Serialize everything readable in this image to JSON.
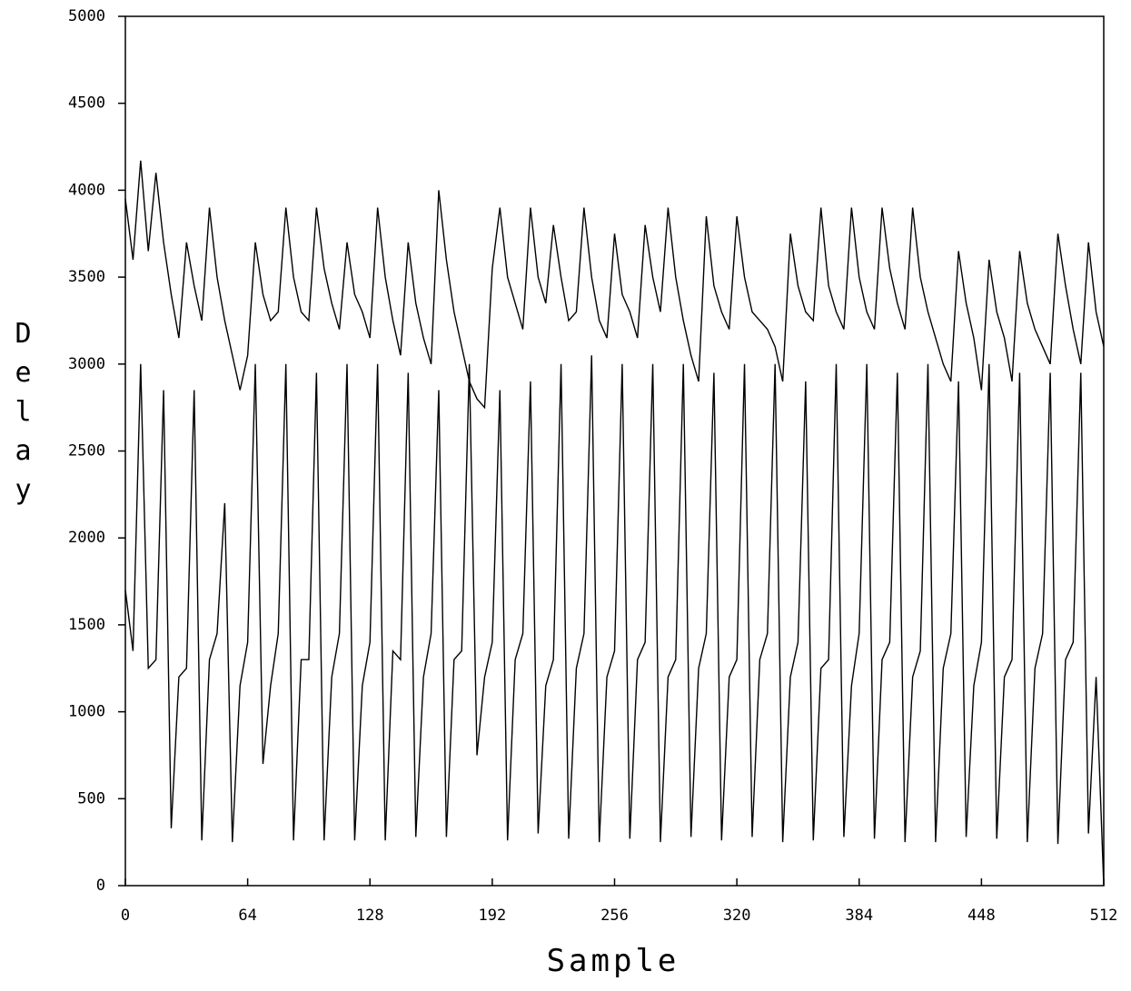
{
  "chart_data": {
    "type": "line",
    "x_label": "Sample",
    "y_label": "Delay",
    "x": [
      0,
      4,
      8,
      12,
      16,
      20,
      24,
      28,
      32,
      36,
      40,
      44,
      48,
      52,
      56,
      60,
      64,
      68,
      72,
      76,
      80,
      84,
      88,
      92,
      96,
      100,
      104,
      108,
      112,
      116,
      120,
      124,
      128,
      132,
      136,
      140,
      144,
      148,
      152,
      156,
      160,
      164,
      168,
      172,
      176,
      180,
      184,
      188,
      192,
      196,
      200,
      204,
      208,
      212,
      216,
      220,
      224,
      228,
      232,
      236,
      240,
      244,
      248,
      252,
      256,
      260,
      264,
      268,
      272,
      276,
      280,
      284,
      288,
      292,
      296,
      300,
      304,
      308,
      312,
      316,
      320,
      324,
      328,
      332,
      336,
      340,
      344,
      348,
      352,
      356,
      360,
      364,
      368,
      372,
      376,
      380,
      384,
      388,
      392,
      396,
      400,
      404,
      408,
      412,
      416,
      420,
      424,
      428,
      432,
      436,
      440,
      444,
      448,
      452,
      456,
      460,
      464,
      468,
      472,
      476,
      480,
      484,
      488,
      492,
      496,
      500,
      504,
      508,
      512
    ],
    "series": [
      {
        "color": "#000000",
        "values": [
          3950,
          3600,
          4170,
          3650,
          4100,
          3700,
          3400,
          3150,
          3700,
          3450,
          3250,
          3900,
          3500,
          3250,
          3050,
          2850,
          3050,
          3700,
          3400,
          3250,
          3300,
          3900,
          3500,
          3300,
          3250,
          3900,
          3550,
          3350,
          3200,
          3700,
          3400,
          3300,
          3150,
          3900,
          3500,
          3250,
          3050,
          3700,
          3350,
          3150,
          3000,
          4000,
          3600,
          3300,
          3100,
          2900,
          2800,
          2750,
          3550,
          3900,
          3500,
          3350,
          3200,
          3900,
          3500,
          3350,
          3800,
          3500,
          3250,
          3300,
          3900,
          3500,
          3250,
          3150,
          3750,
          3400,
          3300,
          3150,
          3800,
          3500,
          3300,
          3900,
          3500,
          3250,
          3050,
          2900,
          3850,
          3450,
          3300,
          3200,
          3850,
          3500,
          3300,
          3250,
          3200,
          3100,
          2900,
          3750,
          3450,
          3300,
          3250,
          3900,
          3450,
          3300,
          3200,
          3900,
          3500,
          3300,
          3200,
          3900,
          3550,
          3350,
          3200,
          3900,
          3500,
          3300,
          3150,
          3000,
          2900,
          3650,
          3350,
          3150,
          2850,
          3600,
          3300,
          3150,
          2900,
          3650,
          3350,
          3200,
          3100,
          3000,
          3750,
          3450,
          3200,
          3000,
          3700,
          3300,
          3100
        ]
      },
      {
        "color": "#000000",
        "values": [
          1700,
          1350,
          3000,
          1250,
          1300,
          2850,
          330,
          1200,
          1250,
          2850,
          260,
          1300,
          1450,
          2200,
          250,
          1150,
          1400,
          3000,
          700,
          1150,
          1450,
          3000,
          260,
          1300,
          1300,
          2950,
          260,
          1200,
          1450,
          3000,
          260,
          1150,
          1400,
          3000,
          260,
          1350,
          1300,
          2950,
          280,
          1200,
          1450,
          2850,
          280,
          1300,
          1350,
          3000,
          750,
          1200,
          1400,
          2850,
          260,
          1300,
          1450,
          2900,
          300,
          1150,
          1300,
          3000,
          270,
          1250,
          1450,
          3050,
          250,
          1200,
          1350,
          3000,
          270,
          1300,
          1400,
          3000,
          250,
          1200,
          1300,
          3000,
          280,
          1250,
          1450,
          2950,
          260,
          1200,
          1300,
          3000,
          280,
          1300,
          1450,
          3000,
          250,
          1200,
          1400,
          2900,
          260,
          1250,
          1300,
          3000,
          280,
          1150,
          1450,
          3000,
          270,
          1300,
          1400,
          2950,
          250,
          1200,
          1350,
          3000,
          250,
          1250,
          1450,
          2900,
          280,
          1150,
          1400,
          3000,
          270,
          1200,
          1300,
          2950,
          250,
          1250,
          1450,
          2950,
          240,
          1300,
          1400,
          2950,
          300,
          1200,
          0
        ]
      }
    ],
    "xlim": [
      0,
      512
    ],
    "xticks": [
      0,
      64,
      128,
      192,
      256,
      320,
      384,
      448,
      512
    ],
    "ylim": [
      0,
      5000
    ],
    "yticks": [
      0,
      500,
      1000,
      1500,
      2000,
      2500,
      3000,
      3500,
      4000,
      4500,
      5000
    ]
  }
}
